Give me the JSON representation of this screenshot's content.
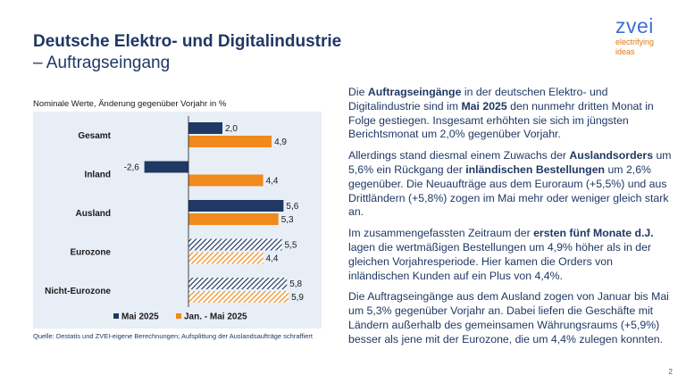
{
  "slide": {
    "title_line1": "Deutsche Elektro- und Digitalindustrie",
    "title_line2": "– Auftragseingang",
    "logo": {
      "word": "zvei",
      "tagline_1": "electrifying",
      "tagline_2": "ideas"
    },
    "source": "Quelle: Destatis und ZVEI-eigene Berechnungen; Aufsplittung der Auslandsaufträge schraffiert",
    "page_number": "2",
    "paragraphs": [
      [
        {
          "t": "Die ",
          "b": false
        },
        {
          "t": "Auftragseingänge",
          "b": true
        },
        {
          "t": " in der deutschen Elektro- und Digitalindustrie sind im ",
          "b": false
        },
        {
          "t": "Mai 2025",
          "b": true
        },
        {
          "t": " den nunmehr dritten Monat in Folge gestiegen. Insgesamt erhöhten sie sich im jüngsten Berichtsmonat um 2,0% gegenüber Vorjahr.",
          "b": false
        }
      ],
      [
        {
          "t": "Allerdings stand diesmal einem Zuwachs der ",
          "b": false
        },
        {
          "t": "Auslandsorders",
          "b": true
        },
        {
          "t": " um 5,6% ein Rückgang der ",
          "b": false
        },
        {
          "t": "inländischen Bestellungen",
          "b": true
        },
        {
          "t": " um 2,6% gegenüber. Die Neuaufträge aus dem Euroraum (+5,5%) und aus Drittländern (+5,8%) zogen im Mai mehr oder weniger gleich stark an.",
          "b": false
        }
      ],
      [
        {
          "t": "Im zusammengefassten Zeitraum der ",
          "b": false
        },
        {
          "t": "ersten fünf Monate d.J.",
          "b": true
        },
        {
          "t": " lagen die wertmäßigen Bestellungen um 4,9% höher als in der gleichen Vorjahresperiode. Hier kamen die Orders von inländischen Kunden auf ein Plus von 4,4%.",
          "b": false
        }
      ],
      [
        {
          "t": "Die Auftragseingänge aus dem Ausland zogen von Januar bis Mai um 5,3% gegenüber Vorjahr an. Dabei liefen die Geschäfte mit Ländern außerhalb des gemeinsamen Währungsraums (+5,9%) besser als jene mit der Eurozone, die um 4,4% zulegen konnten.",
          "b": false
        }
      ]
    ]
  },
  "chart_data": {
    "type": "bar",
    "orientation": "horizontal",
    "subtitle": "Nominale Werte, Änderung gegenüber Vorjahr in %",
    "categories": [
      "Gesamt",
      "Inland",
      "Ausland",
      "Eurozone",
      "Nicht-Eurozone"
    ],
    "series": [
      {
        "name": "Mai 2025",
        "color": "#1f3864",
        "values": [
          2.0,
          -2.6,
          5.6,
          5.5,
          5.8
        ],
        "labels": [
          "2,0",
          "-2,6",
          "5,6",
          "5,5",
          "5,8"
        ]
      },
      {
        "name": "Jan. - Mai 2025",
        "color": "#f08a1c",
        "values": [
          4.9,
          4.4,
          5.3,
          4.4,
          5.9
        ],
        "labels": [
          "4,9",
          "4,4",
          "5,3",
          "4,4",
          "5,9"
        ]
      }
    ],
    "hatched_categories": [
      "Eurozone",
      "Nicht-Eurozone"
    ],
    "xlim": [
      -4,
      7
    ],
    "legend": "bottom",
    "grid": false,
    "plot_background": "#e8eef6"
  }
}
